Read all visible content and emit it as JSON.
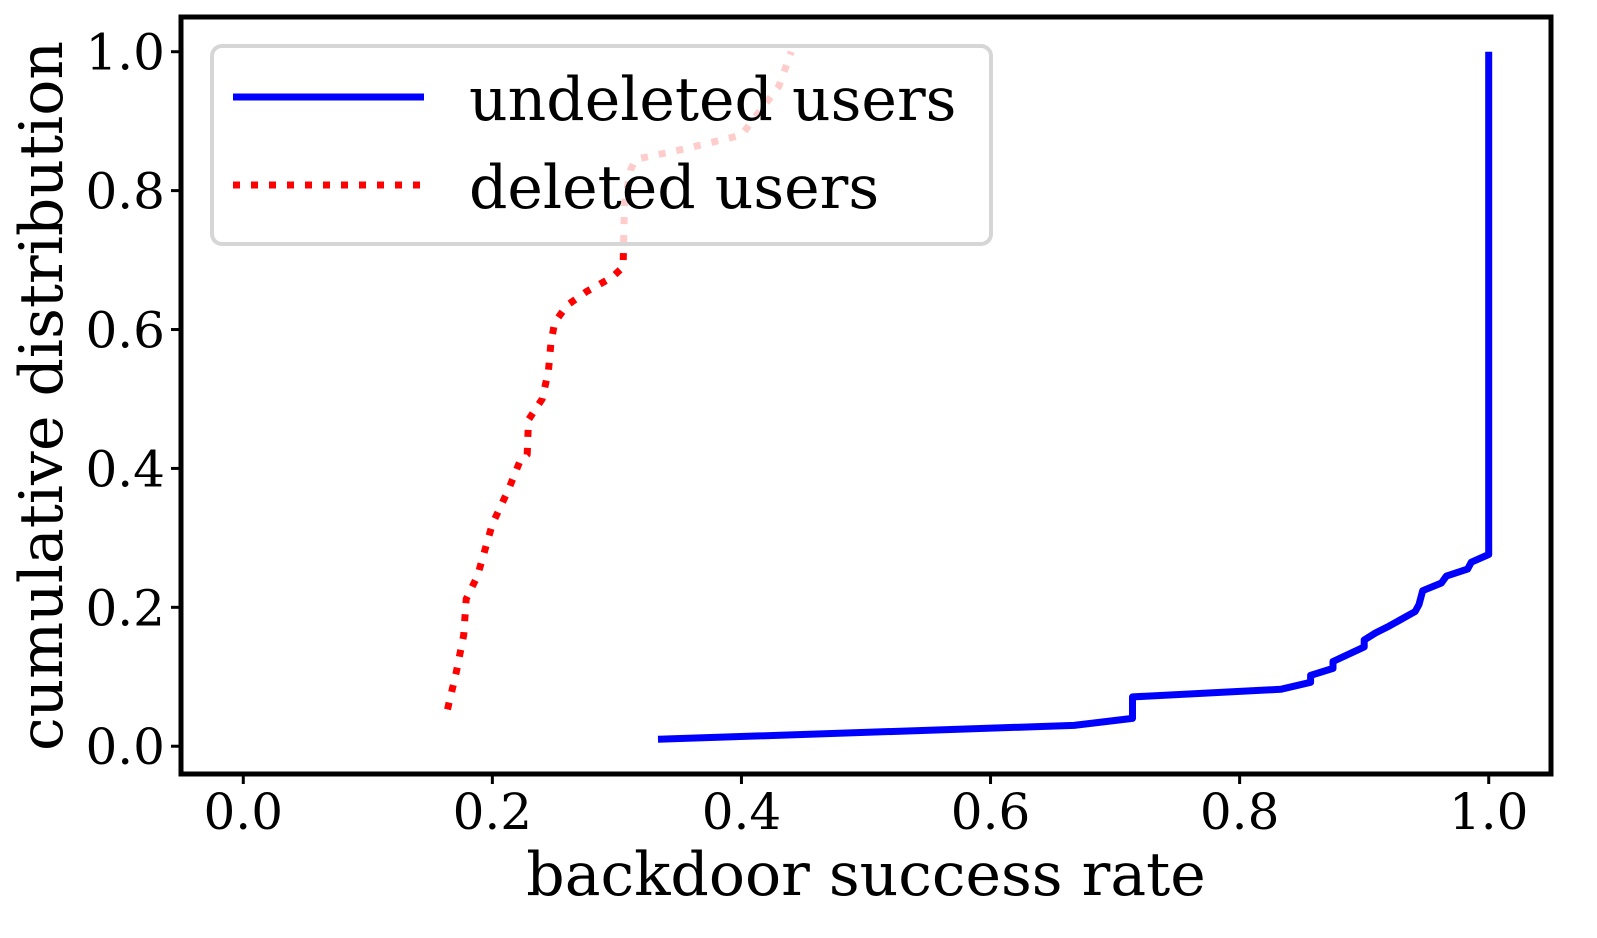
{
  "chart_data": {
    "type": "line",
    "title": "",
    "xlabel": "backdoor success rate",
    "ylabel": "cumulative distribution",
    "xlim": [
      -0.05,
      1.05
    ],
    "ylim": [
      -0.04,
      1.05
    ],
    "xticks": [
      "0.0",
      "0.2",
      "0.4",
      "0.6",
      "0.8",
      "1.0"
    ],
    "yticks": [
      "0.0",
      "0.2",
      "0.4",
      "0.6",
      "0.8",
      "1.0"
    ],
    "grid": false,
    "legend": {
      "position": "top-left",
      "entries": [
        "undeleted users",
        "deleted users"
      ]
    },
    "series": [
      {
        "name": "undeleted users",
        "color": "#0000ff",
        "style": "solid",
        "points": [
          [
            0.333,
            0.01
          ],
          [
            0.667,
            0.03
          ],
          [
            0.714,
            0.04
          ],
          [
            0.714,
            0.071
          ],
          [
            0.833,
            0.082
          ],
          [
            0.857,
            0.092
          ],
          [
            0.857,
            0.102
          ],
          [
            0.875,
            0.112
          ],
          [
            0.875,
            0.122
          ],
          [
            0.9,
            0.143
          ],
          [
            0.9,
            0.153
          ],
          [
            0.909,
            0.163
          ],
          [
            0.92,
            0.173
          ],
          [
            0.941,
            0.194
          ],
          [
            0.944,
            0.204
          ],
          [
            0.947,
            0.224
          ],
          [
            0.962,
            0.235
          ],
          [
            0.966,
            0.245
          ],
          [
            0.983,
            0.255
          ],
          [
            0.986,
            0.265
          ],
          [
            1.0,
            0.276
          ],
          [
            1.0,
            1.0
          ]
        ]
      },
      {
        "name": "deleted users",
        "color": "#ff0000",
        "style": "dotted",
        "points": [
          [
            0.164,
            0.053
          ],
          [
            0.171,
            0.106
          ],
          [
            0.177,
            0.16
          ],
          [
            0.179,
            0.212
          ],
          [
            0.188,
            0.245
          ],
          [
            0.2,
            0.32
          ],
          [
            0.213,
            0.37
          ],
          [
            0.222,
            0.41
          ],
          [
            0.228,
            0.42
          ],
          [
            0.229,
            0.47
          ],
          [
            0.24,
            0.5
          ],
          [
            0.245,
            0.54
          ],
          [
            0.247,
            0.58
          ],
          [
            0.25,
            0.61
          ],
          [
            0.26,
            0.635
          ],
          [
            0.276,
            0.655
          ],
          [
            0.296,
            0.675
          ],
          [
            0.305,
            0.69
          ],
          [
            0.306,
            0.78
          ],
          [
            0.311,
            0.83
          ],
          [
            0.315,
            0.845
          ],
          [
            0.354,
            0.86
          ],
          [
            0.4,
            0.88
          ],
          [
            0.43,
            0.95
          ],
          [
            0.44,
            1.0
          ]
        ]
      }
    ]
  }
}
